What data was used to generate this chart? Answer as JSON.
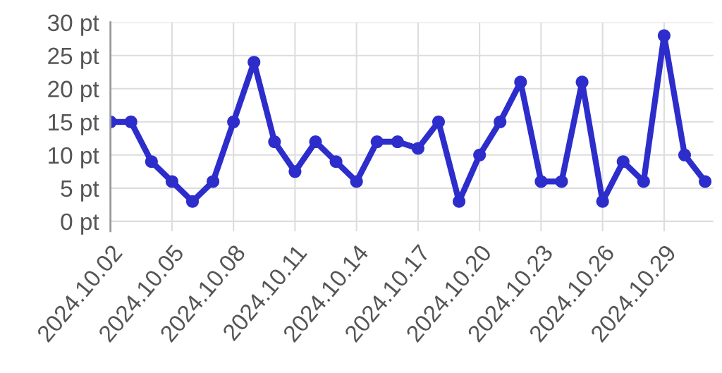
{
  "chart_data": {
    "type": "line",
    "categories": [
      "2024.10.02",
      null,
      null,
      "2024.10.05",
      null,
      null,
      "2024.10.08",
      null,
      null,
      "2024.10.11",
      null,
      null,
      "2024.10.14",
      null,
      null,
      "2024.10.17",
      null,
      null,
      "2024.10.20",
      null,
      null,
      "2024.10.23",
      null,
      null,
      "2024.10.26",
      null,
      null,
      "2024.10.29",
      null,
      null
    ],
    "series": [
      {
        "color": "#2d2dcc",
        "values": [
          15,
          15,
          9,
          6,
          3,
          6,
          15,
          24,
          12,
          7.5,
          12,
          9,
          6,
          12,
          12,
          11,
          15,
          3,
          10,
          15,
          21,
          6,
          6,
          21,
          3,
          9,
          6,
          28,
          10,
          6
        ]
      }
    ],
    "ylim": [
      -1.5,
      30
    ],
    "yticks": [
      {
        "value": 0,
        "label": "0 pt"
      },
      {
        "value": 5,
        "label": "5 pt"
      },
      {
        "value": 10,
        "label": "10 pt"
      },
      {
        "value": 15,
        "label": "15 pt"
      },
      {
        "value": 20,
        "label": "20 pt"
      },
      {
        "value": 25,
        "label": "25 pt"
      },
      {
        "value": 30,
        "label": "30 pt"
      }
    ],
    "grid": true,
    "marker": "circle",
    "line_style": "solid",
    "legend": false
  }
}
